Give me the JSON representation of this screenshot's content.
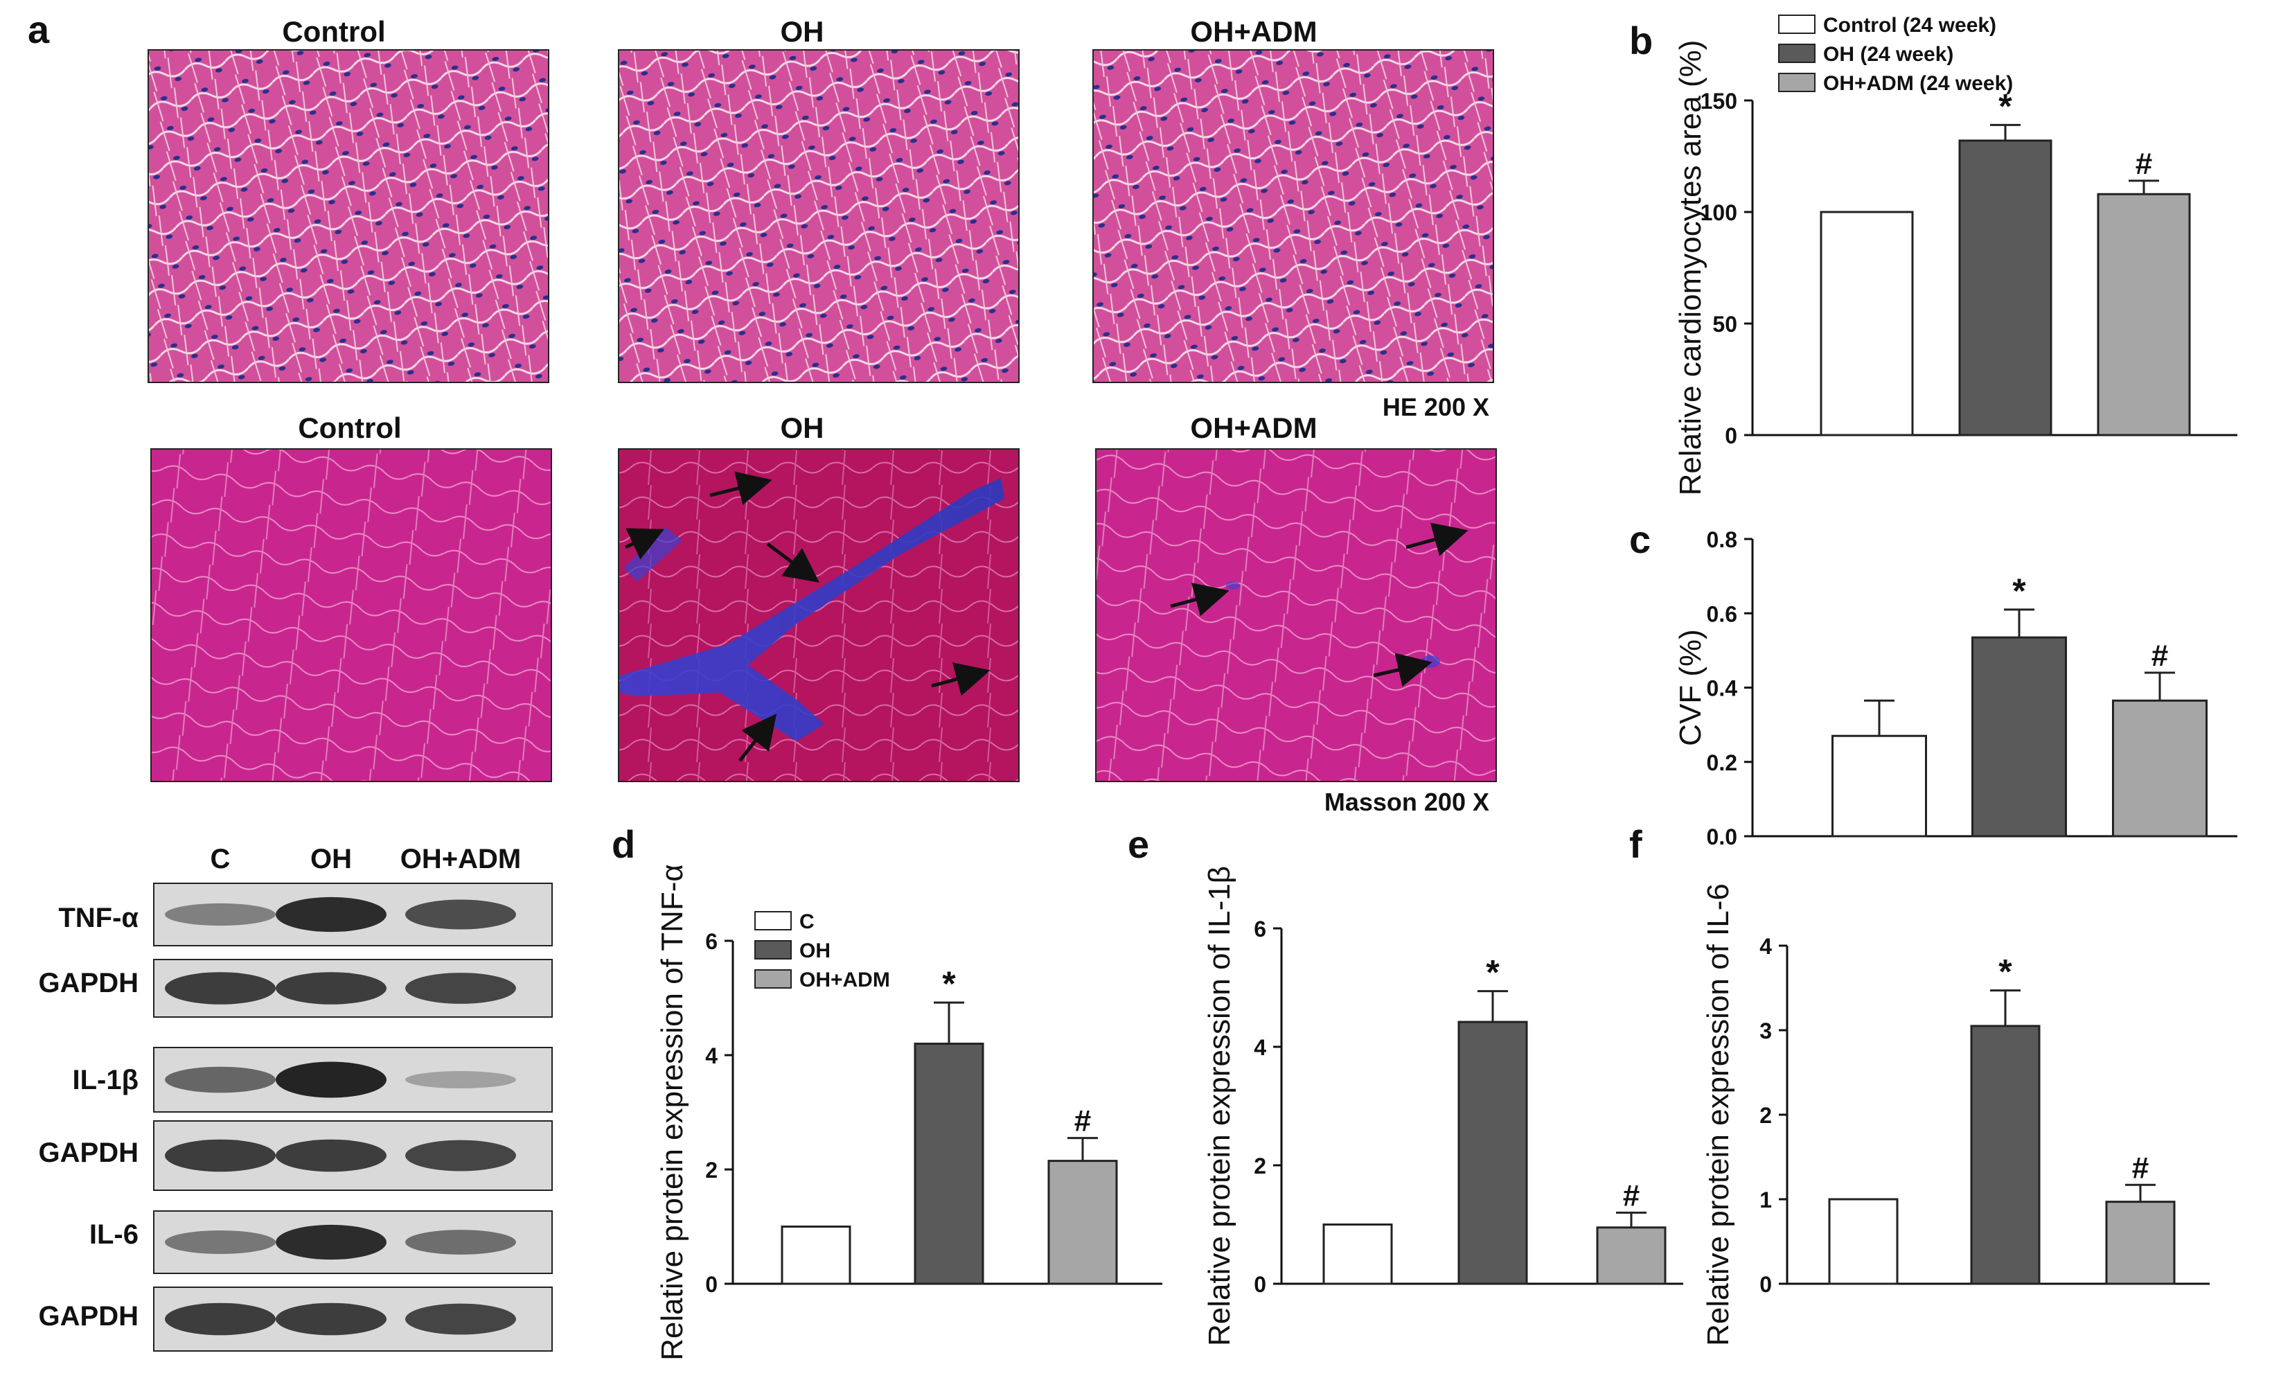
{
  "figure": {
    "panel_letters": {
      "a": "a",
      "b": "b",
      "c": "c",
      "d": "d",
      "e": "e",
      "f": "f"
    },
    "histology": {
      "he_row_titles": [
        "Control",
        "OH",
        "OH+ADM"
      ],
      "masson_row_titles": [
        "Control",
        "OH",
        "OH+ADM"
      ],
      "he_label": "HE 200 X",
      "masson_label": "Masson 200 X"
    },
    "western_blot": {
      "lane_labels": [
        "C",
        "OH",
        "OH+ADM"
      ],
      "blots": [
        {
          "label": "TNF-α",
          "intensity": [
            0.45,
            0.95,
            0.75
          ]
        },
        {
          "label": "GAPDH",
          "intensity": [
            0.85,
            0.85,
            0.8
          ]
        },
        {
          "label": "IL-1β",
          "intensity": [
            0.6,
            1.0,
            0.25
          ]
        },
        {
          "label": "GAPDH",
          "intensity": [
            0.85,
            0.85,
            0.8
          ]
        },
        {
          "label": "IL-6",
          "intensity": [
            0.5,
            0.95,
            0.55
          ]
        },
        {
          "label": "GAPDH",
          "intensity": [
            0.85,
            0.85,
            0.8
          ]
        }
      ]
    },
    "colors": {
      "bar_c": "#ffffff",
      "bar_oh": "#5a5a5a",
      "bar_ohadm": "#a6a6a6",
      "axis": "#111111"
    }
  },
  "chart_data": [
    {
      "id": "b",
      "type": "bar",
      "categories": [
        "Control (24 week)",
        "OH (24 week)",
        "OH+ADM (24 week)"
      ],
      "values": [
        100,
        132,
        108
      ],
      "errors": [
        0,
        7,
        6
      ],
      "sig": [
        "",
        "*",
        "#"
      ],
      "ylabel": "Relative cardiomyocytes area (%)",
      "ylim": [
        0,
        150
      ],
      "yticks": [
        "0",
        "50",
        "100",
        "150"
      ],
      "legend": [
        "Control (24 week)",
        "OH (24 week)",
        "OH+ADM (24 week)"
      ]
    },
    {
      "id": "c",
      "type": "bar",
      "categories": [
        "Control (24 week)",
        "OH (24 week)",
        "OH+ADM (24 week)"
      ],
      "values": [
        0.27,
        0.535,
        0.365
      ],
      "errors": [
        0.095,
        0.075,
        0.075
      ],
      "sig": [
        "",
        "*",
        "#"
      ],
      "ylabel": "CVF (%)",
      "ylim": [
        0,
        0.8
      ],
      "yticks": [
        "0.0",
        "0.2",
        "0.4",
        "0.6",
        "0.8"
      ]
    },
    {
      "id": "d",
      "type": "bar",
      "categories": [
        "C",
        "OH",
        "OH+ADM"
      ],
      "values": [
        1,
        4.2,
        2.15
      ],
      "errors": [
        0,
        0.72,
        0.4
      ],
      "sig": [
        "",
        "*",
        "#"
      ],
      "ylabel": "Relative protein expression of  TNF-α",
      "ylim": [
        0,
        6
      ],
      "yticks": [
        "0",
        "2",
        "4",
        "6"
      ],
      "legend": [
        "C",
        "OH",
        "OH+ADM"
      ]
    },
    {
      "id": "e",
      "type": "bar",
      "categories": [
        "C",
        "OH",
        "OH+ADM"
      ],
      "values": [
        1,
        4.42,
        0.95
      ],
      "errors": [
        0,
        0.52,
        0.25
      ],
      "sig": [
        "",
        "*",
        "#"
      ],
      "ylabel": "Relative protein expression of IL-1β",
      "ylim": [
        0,
        6
      ],
      "yticks": [
        "0",
        "2",
        "4",
        "6"
      ]
    },
    {
      "id": "f",
      "type": "bar",
      "categories": [
        "C",
        "OH",
        "OH+ADM"
      ],
      "values": [
        1,
        3.05,
        0.97
      ],
      "errors": [
        0,
        0.42,
        0.2
      ],
      "sig": [
        "",
        "*",
        "#"
      ],
      "ylabel": "Relative protein expression of IL-6",
      "ylim": [
        0,
        4
      ],
      "yticks": [
        "0",
        "1",
        "2",
        "3",
        "4"
      ]
    }
  ]
}
